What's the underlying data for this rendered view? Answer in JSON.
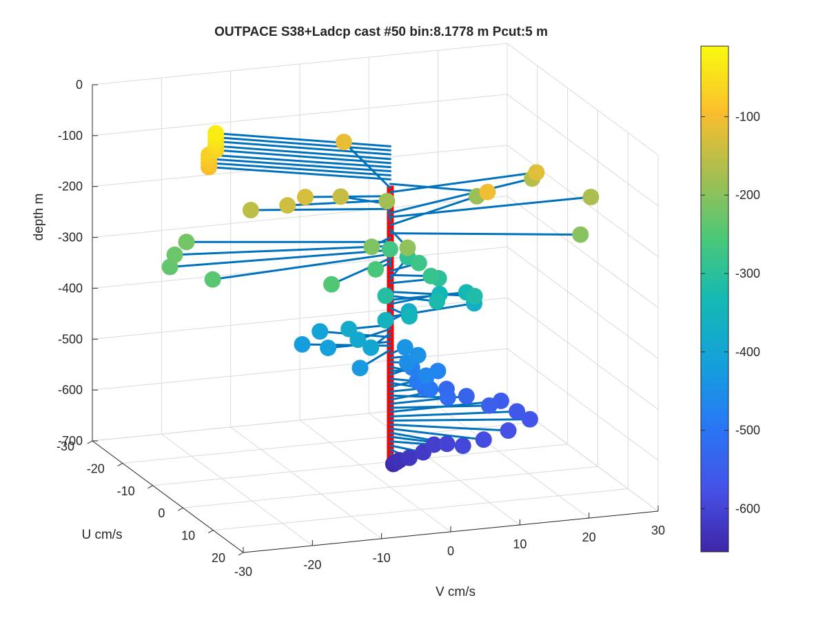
{
  "title": "OUTPACE S38+Ladcp cast #50 bin:8.1778 m  Pcut:5 m",
  "colors": {
    "vector": "#0072bd",
    "profile_axis": "#ff0000",
    "grid": "#d9d9d9"
  },
  "chart_data": {
    "type": "scatter",
    "subtype": "3d-velocity-profile",
    "title": "OUTPACE S38+Ladcp cast #50 bin:8.1778 m  Pcut:5 m",
    "xlabel": "V cm/s",
    "ylabel": "U cm/s",
    "zlabel": "depth m",
    "xlim": [
      -30,
      30
    ],
    "ylim": [
      -30,
      20
    ],
    "zlim": [
      -700,
      0
    ],
    "xticks": [
      "-30",
      "-20",
      "-10",
      "0",
      "10",
      "20",
      "30"
    ],
    "yticks": [
      "-30",
      "-20",
      "-10",
      "0",
      "10",
      "20"
    ],
    "zticks": [
      "0",
      "-100",
      "-200",
      "-300",
      "-400",
      "-500",
      "-600",
      "-700"
    ],
    "grid": true,
    "colorbar": {
      "colormap": "parula",
      "range": [
        -655,
        -10
      ],
      "ticks": [
        "-100",
        "-200",
        "-300",
        "-400",
        "-500",
        "-600"
      ]
    },
    "points": [
      {
        "v": -20,
        "u": -12,
        "depth": -30
      },
      {
        "v": -20,
        "u": -12,
        "depth": -38
      },
      {
        "v": -20,
        "u": -12,
        "depth": -46
      },
      {
        "v": -20,
        "u": -12,
        "depth": -55
      },
      {
        "v": -20,
        "u": -12,
        "depth": -63
      },
      {
        "v": -21,
        "u": -12,
        "depth": -71
      },
      {
        "v": -21,
        "u": -12,
        "depth": -79
      },
      {
        "v": -21,
        "u": -12,
        "depth": -87
      },
      {
        "v": -21,
        "u": -12,
        "depth": -95
      },
      {
        "v": 11,
        "u": 7,
        "depth": -104
      },
      {
        "v": 2,
        "u": -20,
        "depth": -112
      },
      {
        "v": 22,
        "u": -2,
        "depth": -120
      },
      {
        "v": -11,
        "u": -3,
        "depth": -128
      },
      {
        "v": -14,
        "u": -2,
        "depth": -136
      },
      {
        "v": -5,
        "u": -5,
        "depth": -144
      },
      {
        "v": -18,
        "u": -5,
        "depth": -153
      },
      {
        "v": 24,
        "u": -8,
        "depth": -161
      },
      {
        "v": 29,
        "u": 0,
        "depth": -169
      },
      {
        "v": 3,
        "u": -8,
        "depth": -177
      },
      {
        "v": 16,
        "u": -8,
        "depth": -185
      },
      {
        "v": -1,
        "u": 8,
        "depth": -193
      },
      {
        "v": 24,
        "u": 8,
        "depth": -201
      },
      {
        "v": -4,
        "u": 3,
        "depth": -209
      },
      {
        "v": -26,
        "u": -8,
        "depth": -218
      },
      {
        "v": -29,
        "u": -5,
        "depth": -226
      },
      {
        "v": -31,
        "u": -2,
        "depth": -234
      },
      {
        "v": -27,
        "u": 3,
        "depth": -242
      },
      {
        "v": -12,
        "u": 8,
        "depth": -250
      },
      {
        "v": -3,
        "u": 2,
        "depth": -259
      },
      {
        "v": 3,
        "u": -7,
        "depth": -267
      },
      {
        "v": 5,
        "u": -2,
        "depth": -275
      },
      {
        "v": 5,
        "u": 2,
        "depth": -283
      },
      {
        "v": 6,
        "u": -8,
        "depth": -291
      },
      {
        "v": 7,
        "u": 0,
        "depth": -299
      },
      {
        "v": -2,
        "u": 3,
        "depth": -308
      },
      {
        "v": 10,
        "u": 5,
        "depth": -316
      },
      {
        "v": 5,
        "u": 4,
        "depth": -324
      },
      {
        "v": 11,
        "u": 0,
        "depth": -332
      },
      {
        "v": 8,
        "u": -2,
        "depth": -340
      },
      {
        "v": 1,
        "u": 4,
        "depth": -348
      },
      {
        "v": -2,
        "u": 3,
        "depth": -356
      },
      {
        "v": 13,
        "u": -2,
        "depth": -365
      },
      {
        "v": 4,
        "u": -3,
        "depth": -373
      },
      {
        "v": -6,
        "u": 0,
        "depth": -381
      },
      {
        "v": -6,
        "u": 3,
        "depth": -389
      },
      {
        "v": -5,
        "u": 5,
        "depth": -397
      },
      {
        "v": -8,
        "u": -5,
        "depth": -405
      },
      {
        "v": -9,
        "u": 0,
        "depth": -414
      },
      {
        "v": -11,
        "u": -4,
        "depth": -422
      },
      {
        "v": -7,
        "u": 6,
        "depth": -430
      },
      {
        "v": 3,
        "u": -2,
        "depth": -438
      },
      {
        "v": 4,
        "u": 0,
        "depth": -446
      },
      {
        "v": 2,
        "u": 1,
        "depth": -454
      },
      {
        "v": 3,
        "u": 5,
        "depth": -463
      },
      {
        "v": 6,
        "u": 2,
        "depth": -471
      },
      {
        "v": 4,
        "u": -2,
        "depth": -479
      },
      {
        "v": 3,
        "u": 2,
        "depth": -487
      },
      {
        "v": 4,
        "u": 4,
        "depth": -495
      },
      {
        "v": 6,
        "u": -2,
        "depth": -503
      },
      {
        "v": 5,
        "u": 0,
        "depth": -512
      },
      {
        "v": 7,
        "u": 3,
        "depth": -520
      },
      {
        "v": 9,
        "u": -2,
        "depth": -528
      },
      {
        "v": 11,
        "u": 0,
        "depth": -536
      },
      {
        "v": 13,
        "u": 3,
        "depth": -544
      },
      {
        "v": 16,
        "u": 0,
        "depth": -552
      },
      {
        "v": 17,
        "u": 3,
        "depth": -561
      },
      {
        "v": 18,
        "u": 5,
        "depth": -569
      },
      {
        "v": 14,
        "u": 7,
        "depth": -577
      },
      {
        "v": 10,
        "u": 8,
        "depth": -585
      },
      {
        "v": 7,
        "u": 8,
        "depth": -593
      },
      {
        "v": 6,
        "u": 5,
        "depth": -601
      },
      {
        "v": 5,
        "u": 3,
        "depth": -610
      },
      {
        "v": 3,
        "u": 4,
        "depth": -618
      },
      {
        "v": 1,
        "u": 4,
        "depth": -626
      },
      {
        "v": 0,
        "u": 3,
        "depth": -634
      },
      {
        "v": 0,
        "u": 2,
        "depth": -642
      },
      {
        "v": 0,
        "u": 1,
        "depth": -650
      }
    ]
  }
}
